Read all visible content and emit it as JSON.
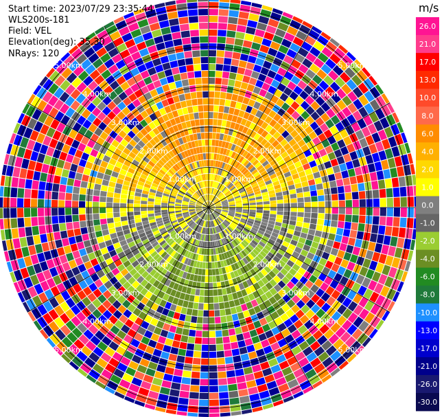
{
  "header": {
    "start_time": "Start time: 2023/07/29 23:35:44",
    "instrument": "WLS200s-181",
    "field": "Field: VEL",
    "elevation": "Elevation(deg): 35.30",
    "nrays": "NRays: 120"
  },
  "chart_data": {
    "type": "heatmap",
    "projection": "polar-ppi",
    "field": "VEL",
    "units": "m/s",
    "n_rays": 120,
    "elevation_deg": 35.3,
    "range_ring_labels": [
      "1.00km",
      "2.00km",
      "3.00km",
      "4.00km",
      "5.00km"
    ],
    "range_rings_km": [
      1,
      2,
      3,
      4,
      5
    ],
    "max_range_km": 5.1,
    "colorbar": {
      "label": "m/s",
      "ticks": [
        "26.0",
        "21.0",
        "17.0",
        "13.0",
        "10.0",
        "8.0",
        "6.0",
        "4.0",
        "2.0",
        "1.0",
        "0.0",
        "-1.0",
        "-2.0",
        "-4.0",
        "-6.0",
        "-8.0",
        "-10.0",
        "-13.0",
        "-17.0",
        "-21.0",
        "-26.0",
        "-30.0"
      ],
      "colors": [
        "#ff1493",
        "#ff3c8c",
        "#ff0000",
        "#ff2a00",
        "#ff4a2a",
        "#ff6a4a",
        "#ff8c00",
        "#ffb000",
        "#ffd800",
        "#ffff00",
        "#7f7f7f",
        "#666666",
        "#9acd32",
        "#6b8e23",
        "#228b22",
        "#1f7a3a",
        "#1e90ff",
        "#0000ff",
        "#0000cd",
        "#00008b",
        "#191970",
        "#0a0a50"
      ]
    },
    "pattern": {
      "north_sector_value": 2.0,
      "south_sector_value": -6.0,
      "near_center_value": 0.0,
      "outer_ranges": "noise"
    }
  }
}
